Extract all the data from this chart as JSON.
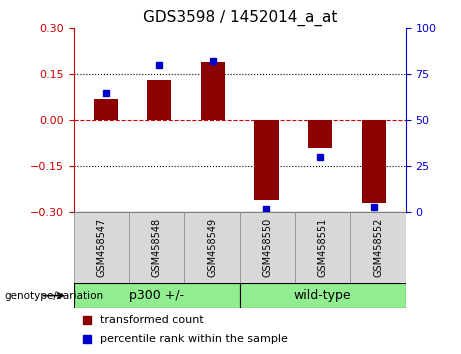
{
  "title": "GDS3598 / 1452014_a_at",
  "samples": [
    "GSM458547",
    "GSM458548",
    "GSM458549",
    "GSM458550",
    "GSM458551",
    "GSM458552"
  ],
  "red_bars": [
    0.07,
    0.13,
    0.19,
    -0.26,
    -0.09,
    -0.27
  ],
  "blue_dots_pct": [
    65,
    80,
    82,
    2,
    30,
    3
  ],
  "ylim_left": [
    -0.3,
    0.3
  ],
  "ylim_right": [
    0,
    100
  ],
  "yticks_left": [
    -0.3,
    -0.15,
    0,
    0.15,
    0.3
  ],
  "yticks_right": [
    0,
    25,
    50,
    75,
    100
  ],
  "group1_label": "p300 +/-",
  "group2_label": "wild-type",
  "group_color": "#90EE90",
  "genotype_label": "genotype/variation",
  "legend_red": "transformed count",
  "legend_blue": "percentile rank within the sample",
  "bar_color": "#8B0000",
  "dot_color": "#0000CD",
  "hline_color": "#CC0000",
  "dot_hline_color": "#999999",
  "bar_width": 0.45,
  "title_fontsize": 11,
  "tick_fontsize": 8,
  "sample_fontsize": 7,
  "legend_fontsize": 8,
  "group_fontsize": 9
}
